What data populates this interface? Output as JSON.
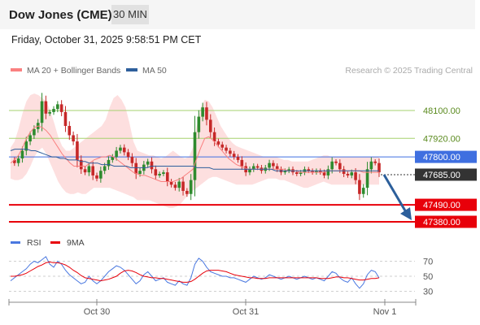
{
  "header": {
    "instrument": "Dow Jones (CME)",
    "timeframe": "30 MIN",
    "datetime": "Friday, October 31, 2025 9:58:51 PM CET"
  },
  "colors": {
    "bollinger": "#fa8080",
    "ma50": "#2e5f9c",
    "resistance": "#a6d16f",
    "pivot": "#3f6fe0",
    "support": "#e8000a",
    "last_price": "#333333",
    "arrow": "#2c5f9b",
    "rsi": "#4a78e0",
    "rsi_ma": "#e8000a"
  },
  "legend": {
    "items": [
      {
        "label": "MA 20 + Bollinger Bands",
        "icon": "pink-swatch"
      },
      {
        "label": "MA 50",
        "icon": "blue-swatch"
      }
    ],
    "credit": "Research © 2025 Trading Central"
  },
  "chart_data": {
    "type": "candlestick",
    "x_ticks": [
      "Oct 30",
      "Oct 31",
      "Nov 1"
    ],
    "price_levels": [
      {
        "label": "48100.00",
        "value": 48100,
        "kind": "resistance"
      },
      {
        "label": "47920.00",
        "value": 47920,
        "kind": "resistance"
      },
      {
        "label": "47800.00",
        "value": 47800,
        "kind": "pivot"
      },
      {
        "label": "47685.00",
        "value": 47685,
        "kind": "last"
      },
      {
        "label": "47490.00",
        "value": 47490,
        "kind": "support"
      },
      {
        "label": "47380.00",
        "value": 47380,
        "kind": "support"
      }
    ],
    "candles_close": [
      47780,
      47760,
      47790,
      47840,
      47900,
      47940,
      47980,
      48020,
      48160,
      48080,
      48090,
      48110,
      48140,
      48090,
      48000,
      47940,
      47900,
      47780,
      47720,
      47700,
      47740,
      47680,
      47660,
      47710,
      47740,
      47780,
      47800,
      47840,
      47860,
      47830,
      47800,
      47760,
      47690,
      47710,
      47750,
      47770,
      47720,
      47680,
      47690,
      47700,
      47640,
      47620,
      47600,
      47640,
      47580,
      47560,
      47650,
      47960,
      48060,
      48120,
      48040,
      47960,
      47900,
      47880,
      47860,
      47840,
      47820,
      47800,
      47780,
      47740,
      47700,
      47720,
      47740,
      47730,
      47710,
      47730,
      47760,
      47740,
      47720,
      47700,
      47710,
      47720,
      47700,
      47690,
      47700,
      47720,
      47710,
      47700,
      47710,
      47700,
      47680,
      47720,
      47770,
      47760,
      47720,
      47690,
      47680,
      47700,
      47650,
      47560,
      47600,
      47720,
      47770,
      47760,
      47700
    ],
    "bb_upper": [
      47860,
      47900,
      47980,
      48080,
      48160,
      48200,
      48210,
      48200,
      48180,
      48160,
      48100,
      48020,
      47930,
      47870,
      47840,
      47840,
      47860,
      47880,
      47900,
      47920,
      47940,
      47960,
      47980,
      48000,
      48040,
      48120,
      48180,
      48200,
      48170,
      48120,
      48020,
      47900,
      47840,
      47830,
      47820,
      47810,
      47810,
      47800,
      47790,
      47800,
      47820,
      47840,
      47820,
      47800,
      47790,
      47800,
      47860,
      48000,
      48120,
      48170,
      48160,
      48120,
      48060,
      48000,
      47960,
      47920,
      47890,
      47870,
      47860,
      47850,
      47840,
      47830,
      47820,
      47810,
      47800,
      47800,
      47800,
      47800,
      47790,
      47780,
      47780,
      47770,
      47770,
      47770,
      47770,
      47770,
      47780,
      47790,
      47800,
      47810,
      47810,
      47800,
      47800,
      47800,
      47800,
      47800,
      47800,
      47800,
      47800,
      47800,
      47800,
      47800,
      47800,
      47800
    ],
    "bb_lower": [
      47660,
      47650,
      47650,
      47660,
      47690,
      47740,
      47800,
      47840,
      47860,
      47820,
      47760,
      47700,
      47640,
      47600,
      47570,
      47560,
      47560,
      47570,
      47560,
      47560,
      47580,
      47600,
      47600,
      47600,
      47600,
      47600,
      47590,
      47580,
      47570,
      47560,
      47550,
      47540,
      47520,
      47520,
      47520,
      47520,
      47510,
      47500,
      47490,
      47480,
      47470,
      47470,
      47480,
      47500,
      47530,
      47560,
      47580,
      47600,
      47620,
      47640,
      47660,
      47670,
      47670,
      47660,
      47650,
      47640,
      47630,
      47620,
      47620,
      47620,
      47620,
      47620,
      47630,
      47640,
      47650,
      47660,
      47660,
      47660,
      47650,
      47650,
      47640,
      47630,
      47620,
      47610,
      47600,
      47600,
      47610,
      47620,
      47630,
      47640,
      47630,
      47620,
      47620,
      47620,
      47620,
      47620,
      47620,
      47620,
      47620,
      47620,
      47620,
      47620,
      47620,
      47620
    ],
    "bb_mid": [
      47760,
      47780,
      47810,
      47860,
      47920,
      47960,
      47990,
      48000,
      47990,
      47970,
      47940,
      47900,
      47860,
      47820,
      47790,
      47760,
      47740,
      47740,
      47740,
      47740,
      47760,
      47780,
      47790,
      47800,
      47800,
      47810,
      47800,
      47780,
      47760,
      47740,
      47720,
      47700,
      47690,
      47680,
      47680,
      47670,
      47660,
      47650,
      47640,
      47640,
      47640,
      47640,
      47650,
      47660,
      47680,
      47700,
      47720,
      47790,
      47860,
      47920,
      47930,
      47910,
      47880,
      47850,
      47820,
      47790,
      47770,
      47750,
      47740,
      47730,
      47720,
      47720,
      47720,
      47720,
      47720,
      47720,
      47720,
      47720,
      47720,
      47720,
      47710,
      47710,
      47710,
      47700,
      47700,
      47700,
      47700,
      47700,
      47700,
      47700,
      47710,
      47710,
      47710,
      47710,
      47710,
      47710,
      47710,
      47710,
      47710,
      47700,
      47700,
      47700,
      47700,
      47700
    ],
    "ma50": [
      47840,
      47850,
      47850,
      47850,
      47850,
      47840,
      47840,
      47830,
      47820,
      47810,
      47800,
      47800,
      47790,
      47790,
      47780,
      47780,
      47780,
      47770,
      47770,
      47760,
      47760,
      47760,
      47750,
      47750,
      47750,
      47740,
      47740,
      47740,
      47740,
      47730,
      47730,
      47730,
      47730,
      47730,
      47740,
      47740,
      47740,
      47740,
      47740,
      47740,
      47740,
      47740,
      47740,
      47740,
      47740,
      47730,
      47730,
      47730,
      47730,
      47720,
      47720,
      47720,
      47720,
      47720,
      47720,
      47720,
      47720,
      47720,
      47720,
      47720,
      47720,
      47720,
      47720,
      47720,
      47710,
      47710,
      47710,
      47710,
      47710,
      47710,
      47710,
      47710,
      47710,
      47710,
      47710,
      47710,
      47710,
      47710,
      47710,
      47710,
      47710,
      47710,
      47710,
      47710,
      47710,
      47710,
      47710,
      47710,
      47710,
      47710
    ],
    "forecast_arrow": {
      "from": 47685,
      "to": 47380
    },
    "rsi_panel": {
      "legend": [
        {
          "label": "RSI"
        },
        {
          "label": "9MA"
        }
      ],
      "ticks": [
        "70",
        "50",
        "30"
      ],
      "ylim": [
        20,
        80
      ],
      "rsi": [
        44,
        48,
        52,
        56,
        60,
        66,
        70,
        68,
        72,
        76,
        66,
        62,
        70,
        66,
        58,
        52,
        48,
        44,
        40,
        42,
        50,
        44,
        40,
        44,
        50,
        56,
        60,
        64,
        62,
        58,
        52,
        46,
        40,
        44,
        52,
        56,
        50,
        44,
        46,
        48,
        42,
        40,
        38,
        44,
        40,
        38,
        48,
        66,
        74,
        70,
        62,
        56,
        54,
        52,
        50,
        50,
        48,
        48,
        46,
        44,
        42,
        46,
        50,
        48,
        46,
        48,
        52,
        50,
        48,
        46,
        48,
        50,
        48,
        46,
        48,
        50,
        48,
        46,
        48,
        46,
        44,
        50,
        56,
        54,
        48,
        44,
        42,
        48,
        40,
        34,
        40,
        52,
        58,
        56,
        48
      ],
      "ma9": [
        50,
        50,
        51,
        52,
        54,
        57,
        60,
        63,
        65,
        68,
        69,
        68,
        68,
        67,
        65,
        62,
        58,
        55,
        51,
        48,
        47,
        46,
        45,
        44,
        45,
        46,
        48,
        50,
        54,
        57,
        58,
        57,
        55,
        52,
        50,
        49,
        48,
        48,
        47,
        47,
        46,
        45,
        44,
        43,
        42,
        42,
        43,
        46,
        50,
        54,
        57,
        58,
        58,
        58,
        57,
        56,
        54,
        52,
        51,
        50,
        49,
        48,
        48,
        47,
        47,
        47,
        48,
        48,
        48,
        48,
        48,
        48,
        48,
        48,
        48,
        48,
        48,
        48,
        48,
        47,
        47,
        47,
        48,
        49,
        49,
        48,
        48,
        47,
        46,
        45,
        45,
        46,
        47,
        47,
        48
      ]
    }
  }
}
